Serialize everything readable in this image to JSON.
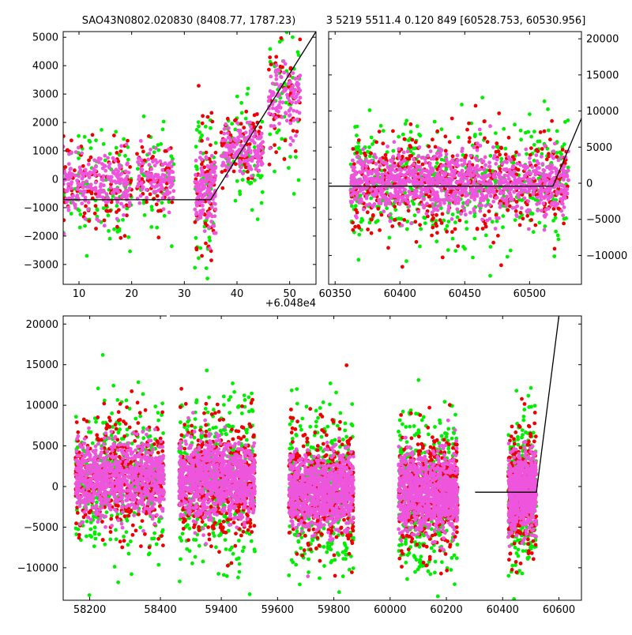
{
  "chart_data": [
    {
      "type": "scatter",
      "title": "SAO43N0802.020830 (8408.77, 1787.23)",
      "xlabel": "",
      "ylabel": "",
      "x_offset_label": "+6.048e4",
      "xlim": [
        7,
        55
      ],
      "ylim": [
        -3700,
        5200
      ],
      "xticks": [
        10,
        20,
        30,
        40,
        50
      ],
      "yticks": [
        -3000,
        -2000,
        -1000,
        0,
        1000,
        2000,
        3000,
        4000,
        5000
      ],
      "ytick_side": "left",
      "grid": false,
      "series_colors": [
        "#ee55dd",
        "#00ee00",
        "#ee0000"
      ],
      "segments": [
        {
          "x": [
            7,
            35,
            55
          ],
          "y": [
            -720,
            -720,
            5200
          ],
          "color": "#000000"
        }
      ],
      "clusters": [
        {
          "x_range": [
            7,
            20
          ],
          "y_center": -200,
          "y_spread": 900,
          "n": 220
        },
        {
          "x_range": [
            21,
            28
          ],
          "y_center": 0,
          "y_spread": 800,
          "n": 120
        },
        {
          "x_range": [
            32,
            36
          ],
          "y_center": -400,
          "y_spread": 1300,
          "n": 140
        },
        {
          "x_range": [
            37,
            45
          ],
          "y_center": 1000,
          "y_spread": 800,
          "n": 160
        },
        {
          "x_range": [
            46,
            52
          ],
          "y_center": 2800,
          "y_spread": 1100,
          "n": 110
        }
      ]
    },
    {
      "type": "scatter",
      "title": "3 5219 5511.4 0.120 849 [60528.753, 60530.956]",
      "xlabel": "",
      "ylabel": "",
      "xlim": [
        60345,
        60540
      ],
      "ylim": [
        -14000,
        21000
      ],
      "xticks": [
        60350,
        60400,
        60450,
        60500
      ],
      "yticks": [
        -10000,
        -5000,
        0,
        5000,
        10000,
        15000,
        20000
      ],
      "ytick_side": "right",
      "grid": false,
      "series_colors": [
        "#ee55dd",
        "#00ee00",
        "#ee0000"
      ],
      "segments": [
        {
          "x": [
            60345,
            60518,
            60540
          ],
          "y": [
            -400,
            -400,
            9000
          ],
          "color": "#000000"
        }
      ],
      "clusters": [
        {
          "x_range": [
            60362,
            60530
          ],
          "y_center": 0,
          "y_spread": 3800,
          "n": 1100
        }
      ]
    },
    {
      "type": "scatter",
      "title": "",
      "xlabel": "",
      "ylabel": "",
      "xlim": [
        58125,
        60680
      ],
      "ylim": [
        -14000,
        21000
      ],
      "xticks": [
        58200,
        58400,
        59400,
        59600,
        59800,
        60000,
        60200,
        60400,
        60600
      ],
      "yticks": [
        -10000,
        -5000,
        0,
        5000,
        10000,
        15000,
        20000
      ],
      "ytick_side": "left",
      "grid": false,
      "series_colors": [
        "#ee55dd",
        "#00ee00",
        "#ee0000"
      ],
      "broken_axis_ranges": [
        [
          58125,
          58420
        ],
        [
          59220,
          60680
        ]
      ],
      "segments": [
        {
          "x": [
            60302,
            60520,
            60600
          ],
          "y": [
            -700,
            -700,
            21000
          ],
          "color": "#000000"
        }
      ],
      "clusters": [
        {
          "x_range": [
            58160,
            58410
          ],
          "y_center": 1000,
          "y_spread": 4000,
          "n": 900
        },
        {
          "x_range": [
            59250,
            59520
          ],
          "y_center": 800,
          "y_spread": 4200,
          "n": 1000
        },
        {
          "x_range": [
            59640,
            59870
          ],
          "y_center": -500,
          "y_spread": 4000,
          "n": 900
        },
        {
          "x_range": [
            60030,
            60240
          ],
          "y_center": -700,
          "y_spread": 4200,
          "n": 900
        },
        {
          "x_range": [
            60420,
            60520
          ],
          "y_center": -700,
          "y_spread": 4000,
          "n": 700
        }
      ]
    }
  ]
}
